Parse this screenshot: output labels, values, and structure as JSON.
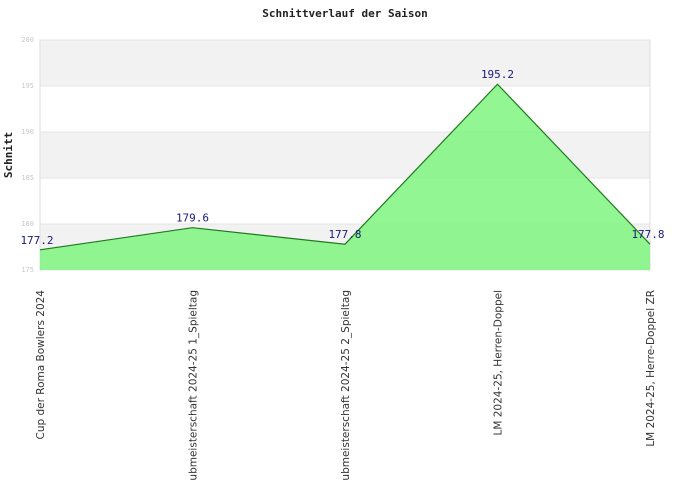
{
  "chart_data": {
    "type": "area",
    "title": "Schnittverlauf der Saison",
    "xlabel": "",
    "ylabel": "Schnitt",
    "ylim": [
      175,
      200
    ],
    "yticks": [
      175,
      180,
      185,
      190,
      195,
      200
    ],
    "grid": true,
    "categories": [
      "Cup der Roma Bowlers 2024",
      "ubmeisterschaft 2024-25   1_Spieltag",
      "ubmeisterschaft 2024-25   2_Spieltag",
      "LM 2024-25, Herren-Doppel",
      "LM 2024-25, Herre-Doppel ZR"
    ],
    "values": [
      177.2,
      179.6,
      177.8,
      195.2,
      177.8
    ],
    "data_labels": [
      "177.2",
      "179.6",
      "177.8",
      "195.2",
      "177.8"
    ],
    "colors": {
      "fill": "#7ff57f",
      "line": "#1f7a1f",
      "band": "#f2f2f2",
      "label": "#1a1a7a"
    }
  }
}
